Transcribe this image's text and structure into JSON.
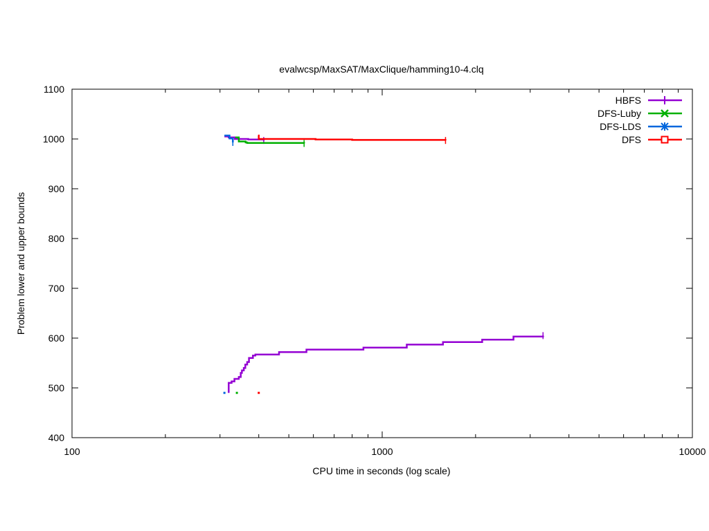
{
  "chart_data": {
    "type": "line",
    "title": "evalwcsp/MaxSAT/MaxClique/hamming10-4.clq",
    "xlabel": "CPU time in seconds (log scale)",
    "ylabel": "Problem lower and upper bounds",
    "x_scale": "log",
    "xlim": [
      100,
      10000
    ],
    "ylim": [
      400,
      1100
    ],
    "x_ticks": [
      100,
      1000,
      10000
    ],
    "x_tick_labels": [
      "100",
      "1000",
      "10000"
    ],
    "y_ticks": [
      400,
      500,
      600,
      700,
      800,
      900,
      1000,
      1100
    ],
    "y_tick_labels": [
      "400",
      "500",
      "600",
      "700",
      "800",
      "900",
      "1000",
      "1100"
    ],
    "grid": false,
    "legend_position": "top-right",
    "series": [
      {
        "name": "HBFS",
        "color": "#9400d3",
        "marker": "plus",
        "lower": [
          [
            320,
            490
          ],
          [
            320,
            510
          ],
          [
            327,
            513
          ],
          [
            334,
            518
          ],
          [
            345,
            522
          ],
          [
            350,
            530
          ],
          [
            353,
            535
          ],
          [
            358,
            540
          ],
          [
            362,
            547
          ],
          [
            367,
            552
          ],
          [
            372,
            560
          ],
          [
            383,
            565
          ],
          [
            390,
            567
          ],
          [
            465,
            572
          ],
          [
            570,
            577
          ],
          [
            870,
            581
          ],
          [
            1200,
            587
          ],
          [
            1570,
            592
          ],
          [
            2100,
            597
          ],
          [
            2650,
            603
          ],
          [
            3300,
            605
          ]
        ],
        "upper": [
          [
            310,
            1005
          ],
          [
            320,
            1003
          ],
          [
            335,
            1000
          ],
          [
            370,
            999
          ],
          [
            415,
            997
          ]
        ]
      },
      {
        "name": "DFS-Luby",
        "color": "#00b000",
        "marker": "x",
        "lower": [
          [
            340,
            490
          ]
        ],
        "upper": [
          [
            336,
            1003
          ],
          [
            345,
            995
          ],
          [
            363,
            993
          ],
          [
            367,
            992
          ],
          [
            560,
            991
          ]
        ]
      },
      {
        "name": "DFS-LDS",
        "color": "#0066dd",
        "marker": "star",
        "lower": [
          [
            310,
            490
          ]
        ],
        "upper": [
          [
            310,
            1007
          ],
          [
            322,
            1001
          ],
          [
            330,
            993
          ]
        ]
      },
      {
        "name": "DFS",
        "color": "#ff0000",
        "marker": "square",
        "lower": [
          [
            400,
            490
          ]
        ],
        "upper": [
          [
            398,
            1007
          ],
          [
            400,
            1000
          ],
          [
            610,
            999
          ],
          [
            800,
            998
          ],
          [
            1600,
            997
          ]
        ]
      }
    ]
  }
}
